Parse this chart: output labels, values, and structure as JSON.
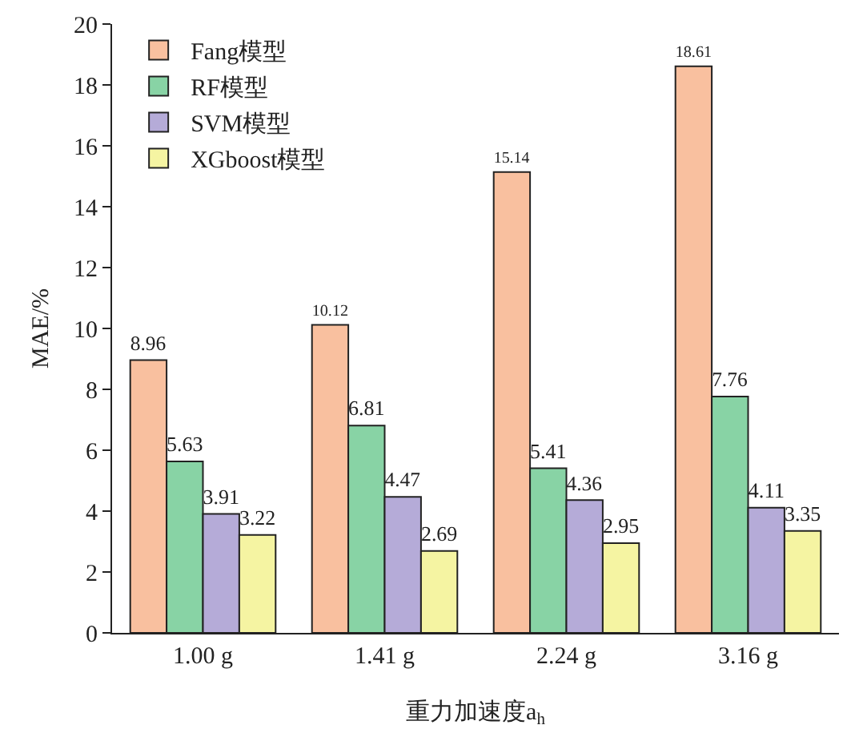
{
  "chart_data": {
    "type": "bar",
    "xlabel": "重力加速度a$_{h}$",
    "ylabel": "MAE/%",
    "categories": [
      "1.00 g",
      "1.41 g",
      "2.24 g",
      "3.16 g"
    ],
    "series": [
      {
        "name": "Fang模型",
        "color": "#f9c09f",
        "values": [
          8.96,
          10.12,
          15.14,
          18.61
        ]
      },
      {
        "name": "RF模型",
        "color": "#88d3a5",
        "values": [
          5.63,
          6.81,
          5.41,
          7.76
        ]
      },
      {
        "name": "SVM模型",
        "color": "#b5abd8",
        "values": [
          3.91,
          4.47,
          4.36,
          4.11
        ]
      },
      {
        "name": "XGboost模型",
        "color": "#f5f4a2",
        "values": [
          3.22,
          2.69,
          2.95,
          3.35
        ]
      }
    ],
    "ylim": [
      0,
      20
    ],
    "yticks": [
      0,
      2,
      4,
      6,
      8,
      10,
      12,
      14,
      16,
      18,
      20
    ],
    "grid": false,
    "legend": "top left",
    "data_labels": true
  }
}
